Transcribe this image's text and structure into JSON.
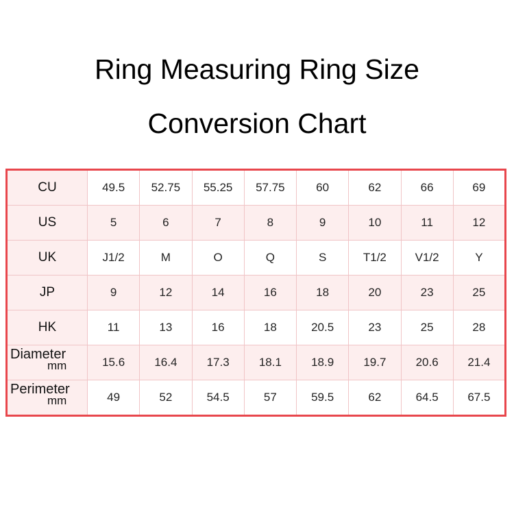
{
  "title_line1": "Ring Measuring Ring Size",
  "title_line2": "Conversion Chart",
  "rows": [
    {
      "label": "CU",
      "values": [
        "49.5",
        "52.75",
        "55.25",
        "57.75",
        "60",
        "62",
        "66",
        "69"
      ]
    },
    {
      "label": "US",
      "values": [
        "5",
        "6",
        "7",
        "8",
        "9",
        "10",
        "11",
        "12"
      ]
    },
    {
      "label": "UK",
      "values": [
        "J1/2",
        "M",
        "O",
        "Q",
        "S",
        "T1/2",
        "V1/2",
        "Y"
      ]
    },
    {
      "label": "JP",
      "values": [
        "9",
        "12",
        "14",
        "16",
        "18",
        "20",
        "23",
        "25"
      ]
    },
    {
      "label": "HK",
      "values": [
        "11",
        "13",
        "16",
        "18",
        "20.5",
        "23",
        "25",
        "28"
      ]
    },
    {
      "label": "Diameter",
      "unit": "mm",
      "values": [
        "15.6",
        "16.4",
        "17.3",
        "18.1",
        "18.9",
        "19.7",
        "20.6",
        "21.4"
      ]
    },
    {
      "label": "Perimeter",
      "unit": "mm",
      "values": [
        "49",
        "52",
        "54.5",
        "57",
        "59.5",
        "62",
        "64.5",
        "67.5"
      ]
    }
  ],
  "colors": {
    "border": "#e8464c",
    "grid": "#f0c4c6",
    "row_tint": "#fdeeee"
  }
}
